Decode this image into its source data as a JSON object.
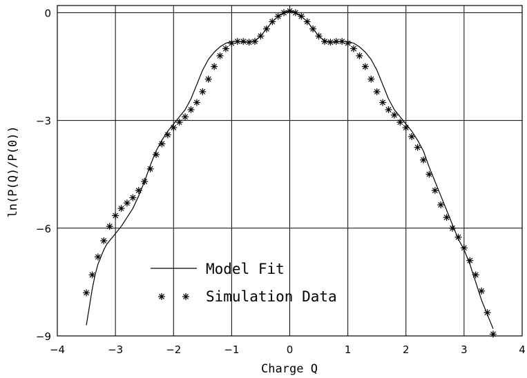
{
  "chart_data": {
    "type": "scatter",
    "title": "",
    "xlabel": "Charge Q",
    "ylabel": "ln(P(Q)/P(0))",
    "xlim": [
      -4,
      4
    ],
    "ylim": [
      -9,
      0.2
    ],
    "xticks": [
      -4,
      -3,
      -2,
      -1,
      0,
      1,
      2,
      3,
      4
    ],
    "yticks": [
      -9,
      -6,
      -3,
      0
    ],
    "grid": true,
    "legend": {
      "placement": "bottom-center",
      "entries": [
        "Model Fit",
        "Simulation Data"
      ]
    },
    "series": [
      {
        "name": "Model Fit",
        "style": "line",
        "x": [
          -3.5,
          -3.45,
          -3.4,
          -3.35,
          -3.3,
          -3.25,
          -3.2,
          -3.15,
          -3.1,
          -3.05,
          -3.0,
          -2.9,
          -2.8,
          -2.7,
          -2.6,
          -2.5,
          -2.4,
          -2.3,
          -2.2,
          -2.1,
          -2.0,
          -1.9,
          -1.8,
          -1.7,
          -1.6,
          -1.5,
          -1.4,
          -1.3,
          -1.2,
          -1.1,
          -1.0,
          -0.9,
          -0.8,
          -0.7,
          -0.6,
          -0.5,
          -0.4,
          -0.3,
          -0.2,
          -0.1,
          0.0,
          0.1,
          0.2,
          0.3,
          0.4,
          0.5,
          0.6,
          0.7,
          0.8,
          0.9,
          1.0,
          1.1,
          1.2,
          1.3,
          1.4,
          1.5,
          1.6,
          1.7,
          1.8,
          1.9,
          2.0,
          2.1,
          2.2,
          2.3,
          2.4,
          2.5,
          2.6,
          2.7,
          2.8,
          2.9,
          3.0,
          3.05,
          3.1,
          3.15,
          3.2,
          3.25,
          3.3,
          3.35,
          3.4,
          3.45,
          3.5
        ],
        "y": [
          -8.7,
          -8.2,
          -7.7,
          -7.3,
          -7.0,
          -6.8,
          -6.6,
          -6.45,
          -6.35,
          -6.25,
          -6.15,
          -5.95,
          -5.7,
          -5.45,
          -5.1,
          -4.7,
          -4.25,
          -3.85,
          -3.55,
          -3.3,
          -3.1,
          -2.9,
          -2.7,
          -2.4,
          -2.0,
          -1.6,
          -1.3,
          -1.1,
          -0.95,
          -0.85,
          -0.8,
          -0.8,
          -0.82,
          -0.82,
          -0.78,
          -0.65,
          -0.45,
          -0.25,
          -0.1,
          0.0,
          0.05,
          0.0,
          -0.1,
          -0.25,
          -0.45,
          -0.65,
          -0.78,
          -0.82,
          -0.82,
          -0.8,
          -0.8,
          -0.85,
          -0.95,
          -1.1,
          -1.3,
          -1.6,
          -2.0,
          -2.4,
          -2.7,
          -2.9,
          -3.1,
          -3.3,
          -3.55,
          -3.85,
          -4.3,
          -4.7,
          -5.1,
          -5.5,
          -5.9,
          -6.3,
          -6.6,
          -6.8,
          -7.0,
          -7.25,
          -7.5,
          -7.75,
          -8.0,
          -8.2,
          -8.4,
          -8.6,
          -8.8
        ]
      },
      {
        "name": "Simulation Data",
        "style": "asterisk",
        "x": [
          -3.5,
          -3.4,
          -3.3,
          -3.2,
          -3.1,
          -3.0,
          -2.9,
          -2.8,
          -2.7,
          -2.6,
          -2.5,
          -2.4,
          -2.3,
          -2.2,
          -2.1,
          -2.0,
          -1.9,
          -1.8,
          -1.7,
          -1.6,
          -1.5,
          -1.4,
          -1.3,
          -1.2,
          -1.1,
          -1.0,
          -0.9,
          -0.8,
          -0.7,
          -0.6,
          -0.5,
          -0.4,
          -0.3,
          -0.2,
          -0.1,
          0.0,
          0.1,
          0.2,
          0.3,
          0.4,
          0.5,
          0.6,
          0.7,
          0.8,
          0.9,
          1.0,
          1.1,
          1.2,
          1.3,
          1.4,
          1.5,
          1.6,
          1.7,
          1.8,
          1.9,
          2.0,
          2.1,
          2.2,
          2.3,
          2.4,
          2.5,
          2.6,
          2.7,
          2.8,
          2.9,
          3.0,
          3.1,
          3.2,
          3.3,
          3.4,
          3.5
        ],
        "y": [
          -7.8,
          -7.3,
          -6.8,
          -6.35,
          -5.95,
          -5.65,
          -5.45,
          -5.3,
          -5.15,
          -4.95,
          -4.7,
          -4.35,
          -3.95,
          -3.65,
          -3.4,
          -3.2,
          -3.05,
          -2.9,
          -2.7,
          -2.5,
          -2.2,
          -1.85,
          -1.5,
          -1.2,
          -1.0,
          -0.85,
          -0.8,
          -0.8,
          -0.82,
          -0.8,
          -0.65,
          -0.45,
          -0.25,
          -0.1,
          0.0,
          0.05,
          0.0,
          -0.1,
          -0.25,
          -0.45,
          -0.65,
          -0.8,
          -0.82,
          -0.8,
          -0.8,
          -0.85,
          -1.0,
          -1.2,
          -1.5,
          -1.85,
          -2.2,
          -2.5,
          -2.7,
          -2.85,
          -3.05,
          -3.2,
          -3.45,
          -3.75,
          -4.1,
          -4.5,
          -4.95,
          -5.35,
          -5.7,
          -6.0,
          -6.25,
          -6.55,
          -6.9,
          -7.3,
          -7.75,
          -8.35,
          -8.95
        ]
      }
    ]
  }
}
